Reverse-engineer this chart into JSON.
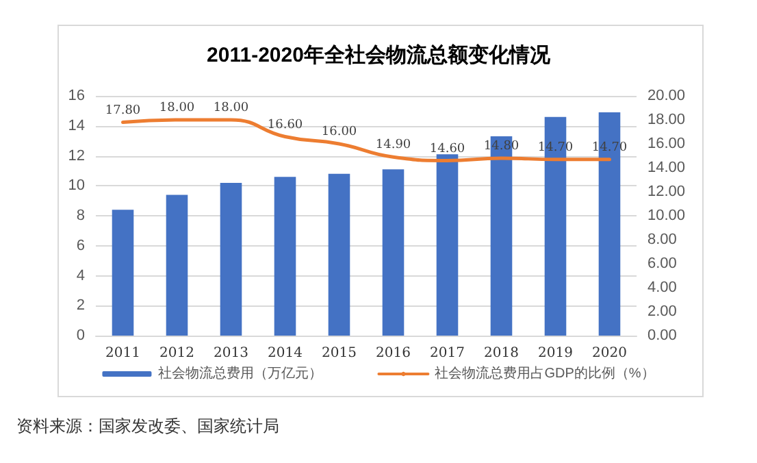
{
  "chart_data": {
    "type": "bar",
    "title": "2011-2020年全社会物流总额变化情况",
    "categories": [
      "2011",
      "2012",
      "2013",
      "2014",
      "2015",
      "2016",
      "2017",
      "2018",
      "2019",
      "2020"
    ],
    "series": [
      {
        "name": "社会物流总费用（万亿元）",
        "color": "#4472c4",
        "values": [
          8.4,
          9.4,
          10.2,
          10.6,
          10.8,
          11.1,
          12.1,
          13.3,
          14.6,
          14.9
        ]
      },
      {
        "name": "社会物流总费用占GDP的比例（%）",
        "type": "line",
        "axis": "y2",
        "color": "#ed7d31",
        "values": [
          17.8,
          18.0,
          18.0,
          16.6,
          16.0,
          14.9,
          14.6,
          14.8,
          14.7,
          14.7
        ],
        "value_labels": [
          "17.80",
          "18.00",
          "18.00",
          "16.60",
          "16.00",
          "14.90",
          "14.60",
          "14.80",
          "14.70",
          "14.70"
        ]
      }
    ],
    "ylim": [
      0,
      16
    ],
    "yticks": [
      0,
      2,
      4,
      6,
      8,
      10,
      12,
      14,
      16
    ],
    "y2lim": [
      0,
      20
    ],
    "y2ticks": [
      {
        "value": 0,
        "label": "0.00"
      },
      {
        "value": 2,
        "label": "2.00"
      },
      {
        "value": 4,
        "label": "4.00"
      },
      {
        "value": 6,
        "label": "6.00"
      },
      {
        "value": 8,
        "label": "8.00"
      },
      {
        "value": 10,
        "label": "10.00"
      },
      {
        "value": 12,
        "label": "12.00"
      },
      {
        "value": 14,
        "label": "14.00"
      },
      {
        "value": 16,
        "label": "16.00"
      },
      {
        "value": 18,
        "label": "18.00"
      },
      {
        "value": 20,
        "label": "20.00"
      }
    ],
    "grid": "y",
    "legend": "bottom",
    "line_style": "solid",
    "marker": "none",
    "annotations": [
      "资料来源：国家发改委、国家统计局"
    ]
  }
}
